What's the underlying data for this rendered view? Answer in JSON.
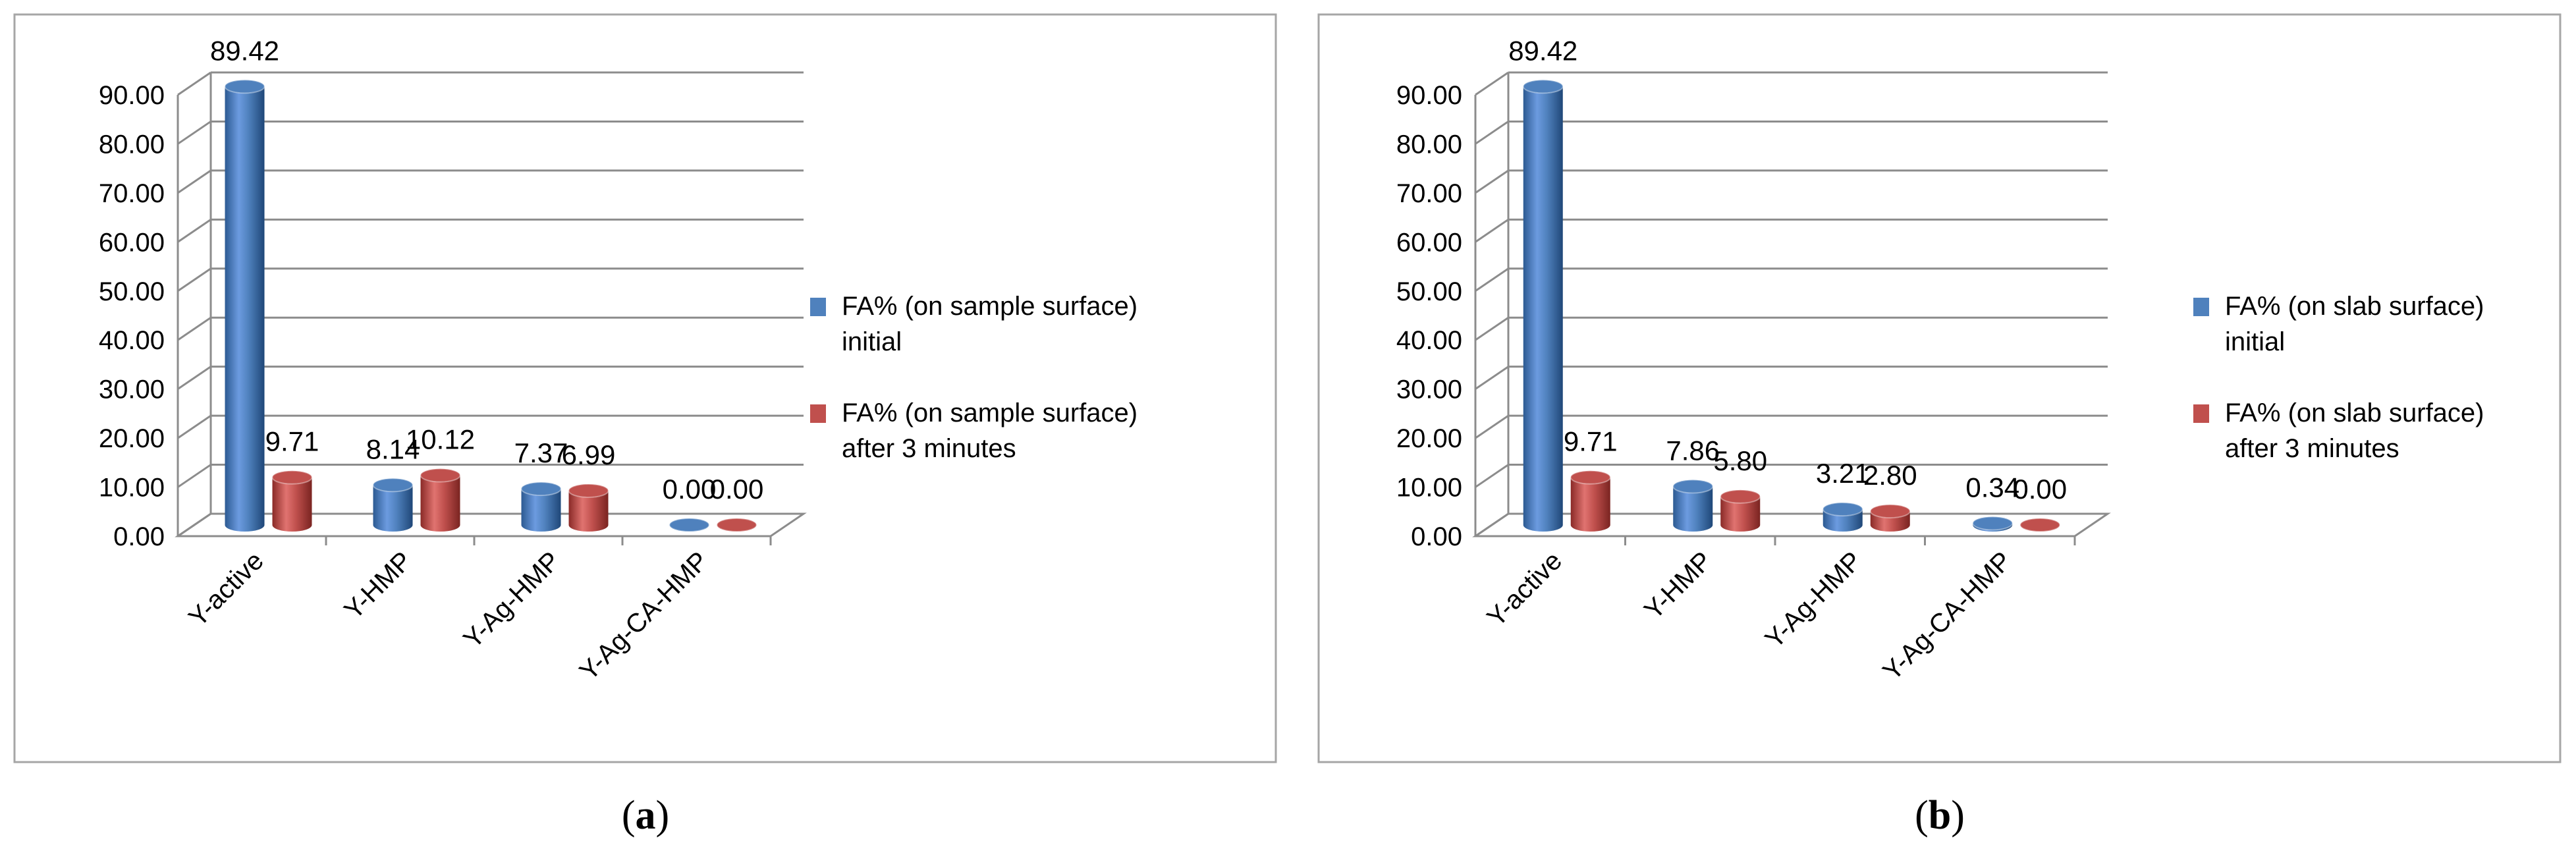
{
  "panels": [
    {
      "caption_open": "(",
      "caption_letter": "a",
      "caption_close": ")"
    },
    {
      "caption_open": "(",
      "caption_letter": "b",
      "caption_close": ")"
    }
  ],
  "colors": {
    "series_initial": "#4f81bd",
    "series_after": "#c0504d",
    "grid": "#8c8c8c",
    "frame": "#a6a6a6"
  },
  "chart_data": [
    {
      "type": "bar",
      "categories": [
        "Y-active",
        "Y-HMP",
        "Y-Ag-HMP",
        "Y-Ag-CA-HMP"
      ],
      "series": [
        {
          "name": "FA% (on sample surface) initial",
          "legend_lines": [
            "FA% (on sample surface)",
            "initial"
          ],
          "values": [
            89.42,
            8.14,
            7.37,
            0.0
          ],
          "labels": [
            "89.42",
            "8.14",
            "7.37",
            "0.00"
          ],
          "color": "#4f81bd"
        },
        {
          "name": "FA% (on sample surface) after 3 minutes",
          "legend_lines": [
            "FA% (on sample surface)",
            "after 3 minutes"
          ],
          "values": [
            9.71,
            10.12,
            6.99,
            0.0
          ],
          "labels": [
            "9.71",
            "10.12",
            "6.99",
            "0.00"
          ],
          "color": "#c0504d"
        }
      ],
      "yticks": [
        "0.00",
        "10.00",
        "20.00",
        "30.00",
        "40.00",
        "50.00",
        "60.00",
        "70.00",
        "80.00",
        "90.00"
      ],
      "ylim": [
        0,
        90
      ],
      "grid": true,
      "legend_position": "right",
      "title": "",
      "xlabel": "",
      "ylabel": ""
    },
    {
      "type": "bar",
      "categories": [
        "Y-active",
        "Y-HMP",
        "Y-Ag-HMP",
        "Y-Ag-CA-HMP"
      ],
      "series": [
        {
          "name": "FA% (on slab surface) initial",
          "legend_lines": [
            "FA% (on slab surface)",
            "initial"
          ],
          "values": [
            89.42,
            7.86,
            3.21,
            0.34
          ],
          "labels": [
            "89.42",
            "7.86",
            "3.21",
            "0.34"
          ],
          "color": "#4f81bd"
        },
        {
          "name": "FA% (on slab surface) after 3 minutes",
          "legend_lines": [
            "FA% (on slab surface)",
            "after 3 minutes"
          ],
          "values": [
            9.71,
            5.8,
            2.8,
            0.0
          ],
          "labels": [
            "9.71",
            "5.80",
            "2.80",
            "0.00"
          ],
          "color": "#c0504d"
        }
      ],
      "yticks": [
        "0.00",
        "10.00",
        "20.00",
        "30.00",
        "40.00",
        "50.00",
        "60.00",
        "70.00",
        "80.00",
        "90.00"
      ],
      "ylim": [
        0,
        90
      ],
      "grid": true,
      "legend_position": "right",
      "title": "",
      "xlabel": "",
      "ylabel": ""
    }
  ]
}
